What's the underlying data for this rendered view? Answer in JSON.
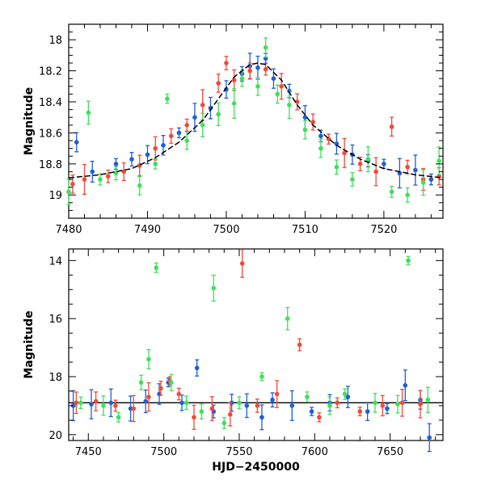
{
  "chart_data": [
    {
      "type": "scatter",
      "panel": "top",
      "xlabel": "",
      "ylabel": "Magnitude",
      "xlim": [
        7480,
        7527.5
      ],
      "ylim": [
        19.15,
        17.9
      ],
      "y_inverted": true,
      "xticks": [
        7480,
        7490,
        7500,
        7510,
        7520
      ],
      "yticks": [
        18,
        18.2,
        18.4,
        18.6,
        18.8,
        19
      ],
      "grid": false,
      "legend": "none",
      "colors": {
        "blue": "#1f5fd6",
        "red": "#f04a3a",
        "green": "#3ee05a",
        "model": "#000000"
      },
      "model_curve": {
        "description_values": "baseline 18.9, peak 18.15",
        "x": [
          7480,
          7484,
          7488,
          7491,
          7494,
          7497,
          7499,
          7501,
          7503,
          7504,
          7505,
          7507,
          7509,
          7511,
          7514,
          7517,
          7520,
          7524,
          7527.5
        ],
        "y": [
          18.89,
          18.87,
          18.83,
          18.76,
          18.66,
          18.52,
          18.38,
          18.24,
          18.16,
          18.15,
          18.16,
          18.26,
          18.42,
          18.55,
          18.68,
          18.77,
          18.83,
          18.87,
          18.89
        ]
      },
      "series": [
        {
          "color": "blue",
          "x": [
            7481,
            7483,
            7486,
            7488,
            7490,
            7492,
            7494,
            7496,
            7498,
            7500,
            7502,
            7503,
            7504,
            7505,
            7506,
            7508,
            7510,
            7512,
            7514,
            7516,
            7518,
            7520,
            7522,
            7524,
            7526
          ],
          "y": [
            18.66,
            18.85,
            18.8,
            18.77,
            18.74,
            18.68,
            18.6,
            18.5,
            18.44,
            18.32,
            18.22,
            18.17,
            18.18,
            18.12,
            18.25,
            18.33,
            18.5,
            18.62,
            18.67,
            18.74,
            18.78,
            18.8,
            18.86,
            18.84,
            18.9
          ]
        },
        {
          "color": "red",
          "x": [
            7480.5,
            7482,
            7485,
            7487,
            7489,
            7491,
            7493,
            7495,
            7497,
            7499,
            7500,
            7501,
            7503,
            7505,
            7507,
            7509,
            7511,
            7513,
            7515,
            7517,
            7519,
            7521,
            7523,
            7525,
            7527
          ],
          "y": [
            18.93,
            18.9,
            18.88,
            18.85,
            18.81,
            18.7,
            18.62,
            18.55,
            18.42,
            18.28,
            18.15,
            18.26,
            18.2,
            18.19,
            18.3,
            18.4,
            18.53,
            18.64,
            18.73,
            18.8,
            18.85,
            18.56,
            18.82,
            18.9,
            18.88
          ]
        },
        {
          "color": "green",
          "x": [
            7480,
            7482.5,
            7484,
            7486,
            7489,
            7491,
            7492.5,
            7495,
            7497,
            7499,
            7501,
            7502,
            7504,
            7505,
            7506.5,
            7508,
            7510,
            7512,
            7514,
            7516,
            7518,
            7521,
            7523,
            7525,
            7527
          ],
          "y": [
            18.98,
            18.47,
            18.9,
            18.86,
            18.94,
            18.8,
            18.38,
            18.65,
            18.55,
            18.48,
            18.41,
            18.25,
            18.3,
            18.05,
            18.35,
            18.42,
            18.58,
            18.7,
            18.82,
            18.9,
            18.77,
            18.98,
            19.0,
            18.92,
            18.78
          ]
        }
      ]
    },
    {
      "type": "scatter",
      "panel": "bottom",
      "xlabel": "HJD−2450000",
      "ylabel": "Magnitude",
      "xlim": [
        7437,
        7685
      ],
      "ylim": [
        20.2,
        13.6
      ],
      "y_inverted": true,
      "xticks": [
        7450,
        7500,
        7550,
        7600,
        7650
      ],
      "yticks": [
        14,
        16,
        18,
        20
      ],
      "grid": false,
      "legend": "none",
      "baseline_magnitude": 18.9,
      "series": [
        {
          "color": "blue",
          "x": [
            7440,
            7452,
            7465,
            7478,
            7488,
            7497,
            7503,
            7512,
            7522,
            7533,
            7545,
            7555,
            7565,
            7572,
            7585,
            7598,
            7610,
            7622,
            7635,
            7648,
            7660,
            7670,
            7676
          ],
          "y": [
            19.0,
            18.95,
            18.9,
            19.1,
            18.85,
            18.6,
            18.2,
            18.9,
            17.7,
            19.2,
            18.9,
            19.0,
            19.4,
            18.8,
            19.0,
            19.2,
            18.9,
            18.7,
            19.2,
            19.1,
            18.3,
            18.8,
            20.1
          ]
        },
        {
          "color": "red",
          "x": [
            7442,
            7455,
            7468,
            7480,
            7490,
            7498,
            7504,
            7510,
            7520,
            7532,
            7544,
            7552,
            7562,
            7575,
            7590,
            7603,
            7615,
            7630,
            7645,
            7658,
            7670
          ],
          "y": [
            18.9,
            18.85,
            19.0,
            19.1,
            18.7,
            18.4,
            18.15,
            18.6,
            19.4,
            19.1,
            19.3,
            14.1,
            19.0,
            18.6,
            16.9,
            19.4,
            18.9,
            19.2,
            19.0,
            18.9,
            18.95
          ]
        },
        {
          "color": "green",
          "x": [
            7445,
            7460,
            7470,
            7485,
            7490,
            7495,
            7505,
            7515,
            7525,
            7533,
            7540,
            7550,
            7565,
            7582,
            7595,
            7610,
            7620,
            7640,
            7655,
            7662,
            7675
          ],
          "y": [
            18.9,
            19.0,
            19.4,
            18.2,
            17.4,
            14.25,
            18.2,
            18.9,
            19.2,
            14.95,
            19.6,
            18.9,
            18.0,
            16.0,
            18.7,
            19.0,
            18.6,
            18.9,
            18.95,
            14.0,
            18.8
          ]
        }
      ]
    }
  ]
}
